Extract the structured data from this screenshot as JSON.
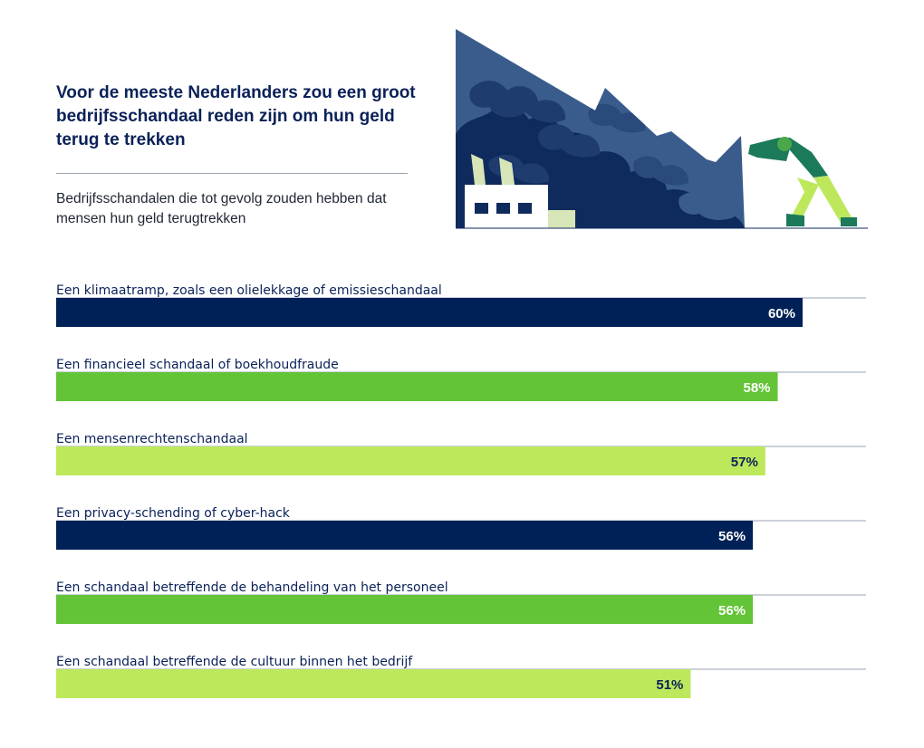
{
  "header": {
    "title": "Voor de meeste Nederlanders zou een groot bedrijfsschandaal reden zijn om hun geld terug te trekken",
    "subtitle": "Bedrijfsschandalen die tot gevolg zouden hebben dat mensen hun geld terugtrekken"
  },
  "chart_data": {
    "type": "bar",
    "orientation": "horizontal",
    "categories": [
      "Een klimaatramp, zoals een olielekkage of emissieschandaal",
      "Een financieel schandaal of boekhoudfraude",
      "Een mensenrechtenschandaal",
      "Een privacy-schending of cyber-hack",
      "Een schandaal betreffende de behandeling van het personeel",
      "Een schandaal betreffende de cultuur binnen het bedrijf"
    ],
    "values": [
      60,
      58,
      57,
      56,
      56,
      51
    ],
    "value_labels": [
      "60%",
      "58%",
      "57%",
      "56%",
      "56%",
      "51%"
    ],
    "bar_colors": [
      "#002157",
      "#62c436",
      "#bde85c",
      "#002157",
      "#62c436",
      "#bde85c"
    ],
    "label_colors": [
      "#ffffff",
      "#ffffff",
      "#0a2158",
      "#ffffff",
      "#ffffff",
      "#0a2158"
    ],
    "xlim": [
      0,
      65
    ],
    "unit": "%"
  }
}
